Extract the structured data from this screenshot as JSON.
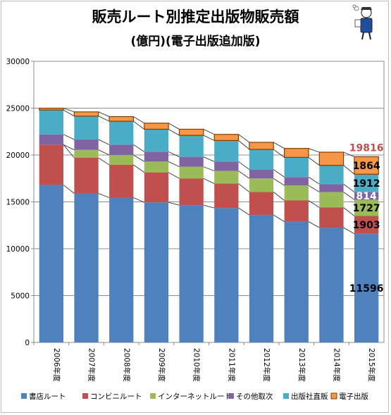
{
  "chart_data": {
    "type": "bar",
    "stacked": true,
    "title": "販売ルート別推定出版物販売額",
    "subtitle": "(億円)(電子出版追加版)",
    "categories": [
      "2006年度",
      "2007年度",
      "2008年度",
      "2009年度",
      "2010年度",
      "2011年度",
      "2012年度",
      "2013年度",
      "2014年度",
      "2015年度"
    ],
    "ylim": [
      0,
      30000
    ],
    "yticks": [
      0,
      5000,
      10000,
      15000,
      20000,
      25000,
      30000
    ],
    "grid": true,
    "legend_position": "bottom",
    "series": [
      {
        "name": "書店ルート",
        "color": "#4f81bd",
        "values": [
          16800,
          15900,
          15450,
          14950,
          14650,
          14350,
          13600,
          12900,
          12250,
          11596
        ]
      },
      {
        "name": "コンビニルート",
        "color": "#c0504d",
        "values": [
          4300,
          3800,
          3500,
          3200,
          2850,
          2600,
          2450,
          2250,
          2150,
          1903
        ]
      },
      {
        "name": "インターネットルート",
        "color": "#9bbb59",
        "values": [
          0,
          850,
          1050,
          1150,
          1250,
          1350,
          1450,
          1600,
          1650,
          1727
        ]
      },
      {
        "name": "その他取次",
        "color": "#8064a2",
        "values": [
          1100,
          1100,
          1100,
          1050,
          1050,
          1000,
          950,
          900,
          850,
          814
        ]
      },
      {
        "name": "出版社直販",
        "color": "#4bacc6",
        "values": [
          2600,
          2500,
          2500,
          2400,
          2300,
          2250,
          2150,
          2100,
          2000,
          1912
        ]
      },
      {
        "name": "電子出版",
        "color": "#f79646",
        "values": [
          200,
          450,
          500,
          650,
          650,
          650,
          750,
          950,
          1400,
          1864
        ]
      }
    ],
    "data_labels": [
      {
        "series_index": 5,
        "category_index": 9,
        "text": "1864",
        "color": "#000000",
        "placement": "center"
      },
      {
        "series_index": 4,
        "category_index": 9,
        "text": "1912",
        "color": "#000000",
        "placement": "center"
      },
      {
        "series_index": 3,
        "category_index": 9,
        "text": "814",
        "color": "#ffffff",
        "placement": "center"
      },
      {
        "series_index": 2,
        "category_index": 9,
        "text": "1727",
        "color": "#000000",
        "placement": "center"
      },
      {
        "series_index": 1,
        "category_index": 9,
        "text": "1903",
        "color": "#000000",
        "placement": "center"
      },
      {
        "series_index": 0,
        "category_index": 9,
        "text": "11596",
        "color": "#000000",
        "placement": "center"
      },
      {
        "series_index": -1,
        "category_index": 9,
        "text": "19816",
        "color": "#c0504d",
        "placement": "above"
      }
    ]
  }
}
